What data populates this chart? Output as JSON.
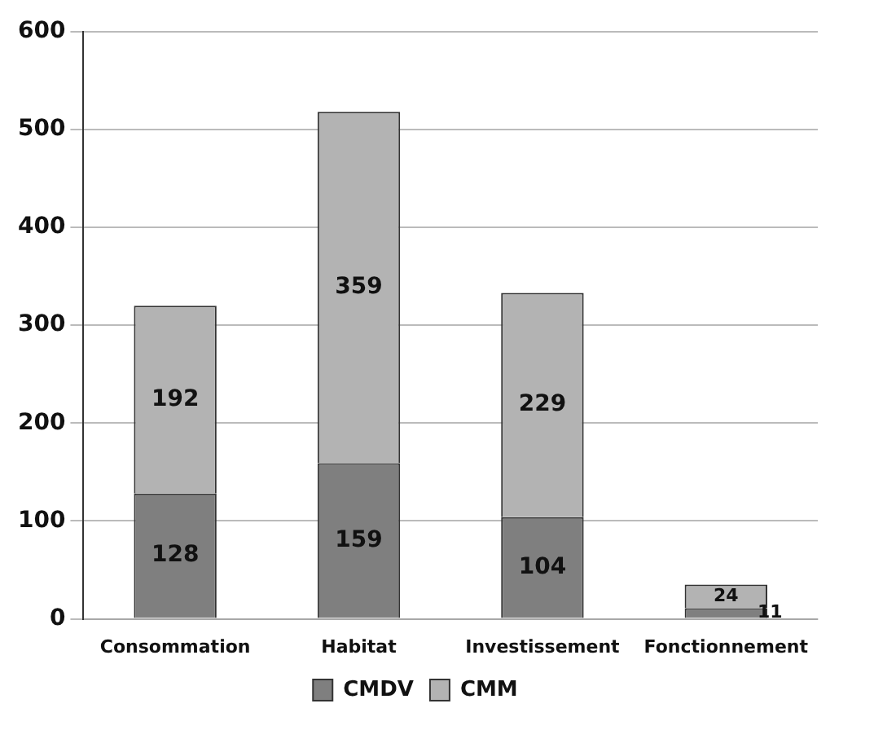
{
  "chart_data": {
    "type": "bar",
    "stacked": true,
    "categories": [
      "Consommation",
      "Habitat",
      "Investissement",
      "Fonctionnement"
    ],
    "series": [
      {
        "name": "CMDV",
        "color": "#7f7f7f",
        "values": [
          128,
          159,
          104,
          11
        ]
      },
      {
        "name": "CMM",
        "color": "#b3b3b3",
        "values": [
          192,
          359,
          229,
          24
        ]
      }
    ],
    "ylim": [
      0,
      600
    ],
    "yticks": [
      0,
      100,
      200,
      300,
      400,
      500,
      600
    ],
    "grid": "y",
    "legend": "bottom",
    "data_labels": true
  }
}
